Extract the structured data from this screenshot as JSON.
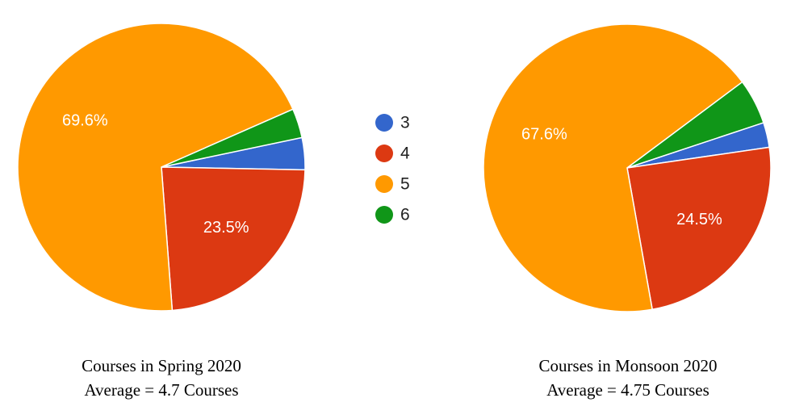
{
  "legend": [
    {
      "label": "3",
      "color": "#3366cc"
    },
    {
      "label": "4",
      "color": "#dc3912"
    },
    {
      "label": "5",
      "color": "#ff9900"
    },
    {
      "label": "6",
      "color": "#109618"
    }
  ],
  "captions": [
    {
      "title": "Courses in Spring 2020",
      "subtitle": "Average = 4.7 Courses"
    },
    {
      "title": "Courses in Monsoon 2020",
      "subtitle": "Average = 4.75 Courses"
    }
  ],
  "chart_data": [
    {
      "type": "pie",
      "title": "Courses in Spring 2020",
      "subtitle": "Average = 4.7 Courses",
      "categories": [
        "3",
        "4",
        "5",
        "6"
      ],
      "values": [
        3.6,
        23.5,
        69.6,
        3.3
      ],
      "labels": [
        "",
        "23.5%",
        "69.6%",
        ""
      ],
      "legend_position": "right"
    },
    {
      "type": "pie",
      "title": "Courses in Monsoon 2020",
      "subtitle": "Average = 4.75 Courses",
      "categories": [
        "3",
        "4",
        "5",
        "6"
      ],
      "values": [
        2.8,
        24.5,
        67.6,
        5.1
      ],
      "labels": [
        "",
        "24.5%",
        "67.6%",
        ""
      ],
      "legend_position": "left"
    }
  ]
}
